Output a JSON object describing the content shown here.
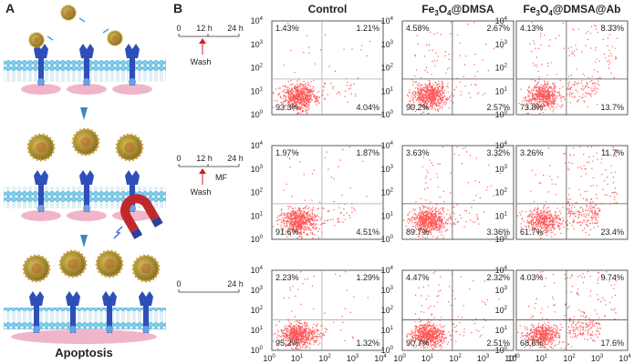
{
  "panel_a": {
    "label": "A",
    "caption": "Apoptosis"
  },
  "panel_b": {
    "label": "B",
    "columns": [
      [
        "Control"
      ],
      [
        "Fe",
        "3",
        "O",
        "4",
        "@DMSA"
      ],
      [
        "Fe",
        "3",
        "O",
        "4",
        "@DMSA@Ab"
      ]
    ],
    "tick_base": "10",
    "tick_exponents": [
      "0",
      "1",
      "2",
      "3",
      "4"
    ],
    "timelines": [
      {
        "start": "0",
        "mid": "12 h",
        "end": "24 h",
        "below": "Wash"
      },
      {
        "start": "0",
        "mid": "12 h",
        "end": "24 h",
        "below": "Wash",
        "side": "MF"
      },
      {
        "start": "0",
        "end": "24 h"
      }
    ],
    "rows": [
      [
        {
          "ul": "1.43%",
          "ur": "1.21%",
          "ll": "93.3%",
          "lr": "4.04%"
        },
        {
          "ul": "4.58%",
          "ur": "2.67%",
          "ll": "90.2%",
          "lr": "2.57%"
        },
        {
          "ul": "4.13%",
          "ur": "8.33%",
          "ll": "73.8%",
          "lr": "13.7%"
        }
      ],
      [
        {
          "ul": "1.97%",
          "ur": "1.87%",
          "ll": "91.6%",
          "lr": "4.51%"
        },
        {
          "ul": "3.63%",
          "ur": "3.32%",
          "ll": "89.7%",
          "lr": "3.36%"
        },
        {
          "ul": "3.26%",
          "ur": "11.7%",
          "ll": "61.7%",
          "lr": "23.4%"
        }
      ],
      [
        {
          "ul": "2.23%",
          "ur": "1.29%",
          "ll": "95.2%",
          "lr": "1.32%"
        },
        {
          "ul": "4.47%",
          "ur": "2.32%",
          "ll": "90.7%",
          "lr": "2.51%"
        },
        {
          "ul": "4.03%",
          "ur": "9.74%",
          "ll": "68.6%",
          "lr": "17.6%"
        }
      ]
    ]
  }
}
